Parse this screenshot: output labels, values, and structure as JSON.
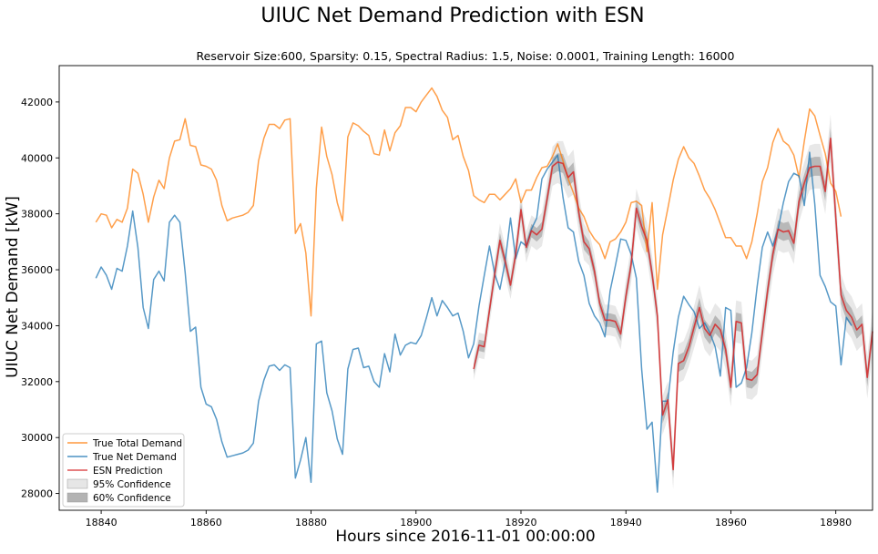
{
  "chart_data": {
    "type": "line",
    "title": "UIUC Net Demand Prediction with ESN",
    "subtitle": "Reservoir Size:600, Sparsity: 0.15, Spectral Radius: 1.5, Noise: 0.0001, Training Length: 16000",
    "xlabel": "Hours since 2016-11-01 00:00:00",
    "ylabel": "UIUC Net Demand [kW]",
    "xlim": [
      18832,
      18987
    ],
    "ylim": [
      27400,
      43300
    ],
    "xticks": [
      18840,
      18860,
      18880,
      18900,
      18920,
      18940,
      18960,
      18980
    ],
    "yticks": [
      28000,
      30000,
      32000,
      34000,
      36000,
      38000,
      40000,
      42000
    ],
    "grid": false,
    "legend_position": "lower-left",
    "colors": {
      "total": "#ff7f0e",
      "net": "#1f77b4",
      "pred": "#d62728",
      "ci95": "#e6e6e6",
      "ci60": "#b3b3b3"
    },
    "legend": [
      {
        "key": "total",
        "label": "True Total Demand",
        "kind": "line"
      },
      {
        "key": "net",
        "label": "True Net Demand",
        "kind": "line"
      },
      {
        "key": "pred",
        "label": "ESN Prediction",
        "kind": "line"
      },
      {
        "key": "ci95",
        "label": "95% Confidence",
        "kind": "patch"
      },
      {
        "key": "ci60",
        "label": "60% Confidence",
        "kind": "patch"
      }
    ],
    "x_start": 18839,
    "pred_start": 18911,
    "total_demand": [
      37700,
      38000,
      37950,
      37500,
      37800,
      37700,
      38200,
      39600,
      39450,
      38700,
      37700,
      38600,
      39200,
      38900,
      40000,
      40600,
      40650,
      41400,
      40450,
      40400,
      39750,
      39700,
      39600,
      39200,
      38300,
      37750,
      37850,
      37900,
      37950,
      38050,
      38300,
      39900,
      40700,
      41200,
      41200,
      41050,
      41350,
      41400,
      37300,
      37650,
      36600,
      34350,
      38900,
      41100,
      40050,
      39400,
      38400,
      37750,
      40750,
      41250,
      41150,
      40950,
      40800,
      40150,
      40100,
      41000,
      40250,
      40900,
      41150,
      41800,
      41800,
      41650,
      42000,
      42250,
      42500,
      42200,
      41700,
      41450,
      40650,
      40800,
      40050,
      39550,
      38650,
      38500,
      38400,
      38700,
      38700,
      38500,
      38700,
      38900,
      39250,
      38400,
      38850,
      38850,
      39300,
      39650,
      39700,
      40050,
      40500,
      39900,
      39250,
      38750,
      38200,
      37900,
      37400,
      37100,
      36900,
      36400,
      37000,
      37100,
      37350,
      37700,
      38400,
      38450,
      38300,
      36650,
      38400,
      35300,
      37250,
      38200,
      39200,
      39950,
      40400,
      40000,
      39800,
      39350,
      38850,
      38550,
      38150,
      37650,
      37150,
      37150,
      36850,
      36850,
      36400,
      37000,
      38000,
      39150,
      39650,
      40550,
      41050,
      40600,
      40450,
      40100,
      39300,
      40600,
      41750,
      41500,
      40800,
      40150,
      39100,
      38800,
      37900
    ],
    "net_demand": [
      35700,
      36100,
      35800,
      35300,
      36050,
      35950,
      36850,
      38100,
      36800,
      34650,
      33900,
      35650,
      35950,
      35600,
      37700,
      37950,
      37700,
      35900,
      33800,
      33950,
      31800,
      31200,
      31100,
      30650,
      29850,
      29300,
      29350,
      29400,
      29450,
      29550,
      29800,
      31300,
      32050,
      32550,
      32600,
      32400,
      32600,
      32500,
      28550,
      29200,
      30000,
      28400,
      33350,
      33450,
      31600,
      30950,
      29950,
      29400,
      32450,
      33150,
      33200,
      32500,
      32550,
      32000,
      31800,
      33000,
      32350,
      33700,
      32950,
      33300,
      33400,
      33350,
      33650,
      34300,
      35000,
      34350,
      34900,
      34650,
      34350,
      34450,
      33800,
      32850,
      33350,
      34700,
      35800,
      36850,
      35850,
      35300,
      36300,
      37850,
      36400,
      37000,
      36850,
      37450,
      37850,
      39250,
      39600,
      39850,
      40100,
      38600,
      37500,
      37350,
      36300,
      35800,
      34800,
      34350,
      34100,
      33600,
      35250,
      36150,
      37100,
      37050,
      36550,
      35700,
      32450,
      30300,
      30550,
      28050,
      31300,
      31300,
      33050,
      34300,
      35050,
      34750,
      34500,
      33900,
      34100,
      33750,
      33250,
      32200,
      34650,
      34550,
      31800,
      31950,
      32500,
      33750,
      35400,
      36800,
      37350,
      36850,
      37450,
      38400,
      39150,
      39450,
      39350,
      38300,
      40200,
      38350,
      35800,
      35400,
      34850,
      34700,
      32600,
      34300,
      34000
    ],
    "esn_prediction": [
      32450,
      33300,
      33250,
      34550,
      35850,
      37050,
      36300,
      35450,
      36550,
      38150,
      36800,
      37400,
      37250,
      37450,
      38550,
      39700,
      39850,
      39800,
      39300,
      39500,
      38050,
      37000,
      36750,
      35950,
      34800,
      34200,
      34200,
      34150,
      33700,
      35050,
      36200,
      38200,
      37550,
      37050,
      35850,
      34350,
      30800,
      31350,
      28850,
      32650,
      32750,
      33250,
      33950,
      34650,
      33900,
      33650,
      34050,
      33850,
      33150,
      31800,
      34150,
      34100,
      32100,
      32050,
      32250,
      33750,
      35250,
      36550,
      37450,
      37350,
      37400,
      36950,
      38450,
      39100,
      39650,
      39700,
      39700,
      38800,
      40700,
      37850,
      35100,
      34550,
      34300,
      33850,
      34050,
      32150,
      33800
    ],
    "ci95_halfwidth": [
      400,
      450,
      450,
      500,
      550,
      600,
      550,
      500,
      550,
      600,
      550,
      550,
      550,
      600,
      650,
      700,
      750,
      800,
      750,
      800,
      700,
      650,
      600,
      600,
      550,
      550,
      550,
      550,
      550,
      600,
      650,
      700,
      700,
      650,
      650,
      650,
      700,
      650,
      700,
      700,
      700,
      700,
      750,
      800,
      750,
      750,
      750,
      750,
      700,
      700,
      750,
      750,
      700,
      700,
      700,
      700,
      750,
      750,
      750,
      750,
      750,
      750,
      750,
      750,
      800,
      800,
      800,
      800,
      850,
      800,
      750,
      750,
      750,
      750,
      750,
      750,
      800
    ],
    "ci60_halfwidth": [
      180,
      200,
      200,
      220,
      240,
      260,
      240,
      220,
      240,
      260,
      240,
      240,
      240,
      260,
      280,
      300,
      320,
      340,
      320,
      340,
      300,
      280,
      260,
      260,
      240,
      240,
      240,
      240,
      240,
      260,
      280,
      300,
      300,
      280,
      280,
      280,
      300,
      280,
      300,
      300,
      300,
      300,
      320,
      340,
      320,
      320,
      320,
      320,
      300,
      300,
      320,
      320,
      300,
      300,
      300,
      300,
      320,
      320,
      320,
      320,
      320,
      320,
      320,
      320,
      340,
      340,
      340,
      340,
      360,
      340,
      320,
      320,
      320,
      320,
      320,
      320,
      340
    ]
  }
}
